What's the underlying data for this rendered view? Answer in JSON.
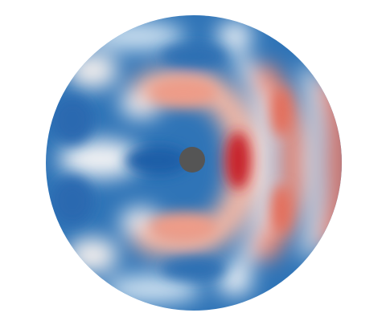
{
  "image": {
    "subject": "circular-wave-field",
    "colors": {
      "background": "#ffffff",
      "deep_blue": "#1f5fa8",
      "mid_blue": "#4f8fc6",
      "light_blue": "#a9cde6",
      "near_white": "#f6f6f6",
      "light_red": "#f1b3a0",
      "mid_red": "#e36d5a",
      "deep_red": "#c81f2a",
      "obstacle": "#555555"
    }
  }
}
